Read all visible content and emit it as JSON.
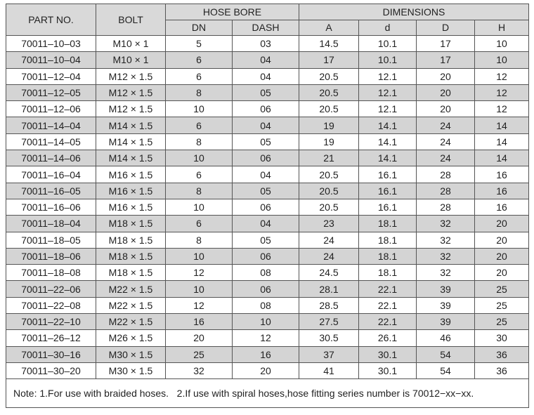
{
  "table": {
    "header": {
      "part_no": "PART NO.",
      "bolt": "BOLT",
      "hose_bore": "HOSE BORE",
      "dimensions": "DIMENSIONS",
      "columns": [
        "DN",
        "DASH",
        "A",
        "d",
        "D",
        "H"
      ]
    },
    "rows": [
      [
        "70011–10–03",
        "M10 × 1",
        "5",
        "03",
        "14.5",
        "10.1",
        "17",
        "10"
      ],
      [
        "70011–10–04",
        "M10 × 1",
        "6",
        "04",
        "17",
        "10.1",
        "17",
        "10"
      ],
      [
        "70011–12–04",
        "M12 × 1.5",
        "6",
        "04",
        "20.5",
        "12.1",
        "20",
        "12"
      ],
      [
        "70011–12–05",
        "M12 × 1.5",
        "8",
        "05",
        "20.5",
        "12.1",
        "20",
        "12"
      ],
      [
        "70011–12–06",
        "M12 × 1.5",
        "10",
        "06",
        "20.5",
        "12.1",
        "20",
        "12"
      ],
      [
        "70011–14–04",
        "M14 × 1.5",
        "6",
        "04",
        "19",
        "14.1",
        "24",
        "14"
      ],
      [
        "70011–14–05",
        "M14 × 1.5",
        "8",
        "05",
        "19",
        "14.1",
        "24",
        "14"
      ],
      [
        "70011–14–06",
        "M14 × 1.5",
        "10",
        "06",
        "21",
        "14.1",
        "24",
        "14"
      ],
      [
        "70011–16–04",
        "M16 × 1.5",
        "6",
        "04",
        "20.5",
        "16.1",
        "28",
        "16"
      ],
      [
        "70011–16–05",
        "M16 × 1.5",
        "8",
        "05",
        "20.5",
        "16.1",
        "28",
        "16"
      ],
      [
        "70011–16–06",
        "M16 × 1.5",
        "10",
        "06",
        "20.5",
        "16.1",
        "28",
        "16"
      ],
      [
        "70011–18–04",
        "M18 × 1.5",
        "6",
        "04",
        "23",
        "18.1",
        "32",
        "20"
      ],
      [
        "70011–18–05",
        "M18 × 1.5",
        "8",
        "05",
        "24",
        "18.1",
        "32",
        "20"
      ],
      [
        "70011–18–06",
        "M18 × 1.5",
        "10",
        "06",
        "24",
        "18.1",
        "32",
        "20"
      ],
      [
        "70011–18–08",
        "M18 × 1.5",
        "12",
        "08",
        "24.5",
        "18.1",
        "32",
        "20"
      ],
      [
        "70011–22–06",
        "M22 × 1.5",
        "10",
        "06",
        "28.1",
        "22.1",
        "39",
        "25"
      ],
      [
        "70011–22–08",
        "M22 × 1.5",
        "12",
        "08",
        "28.5",
        "22.1",
        "39",
        "25"
      ],
      [
        "70011–22–10",
        "M22 × 1.5",
        "16",
        "10",
        "27.5",
        "22.1",
        "39",
        "25"
      ],
      [
        "70011–26–12",
        "M26 × 1.5",
        "20",
        "12",
        "30.5",
        "26.1",
        "46",
        "30"
      ],
      [
        "70011–30–16",
        "M30 × 1.5",
        "25",
        "16",
        "37",
        "30.1",
        "54",
        "36"
      ],
      [
        "70011–30–20",
        "M30 × 1.5",
        "32",
        "20",
        "41",
        "30.1",
        "54",
        "36"
      ]
    ],
    "note": "Note: 1.For use with braided hoses.   2.If use with spiral hoses,hose fitting series number is 70012−xx−xx."
  }
}
